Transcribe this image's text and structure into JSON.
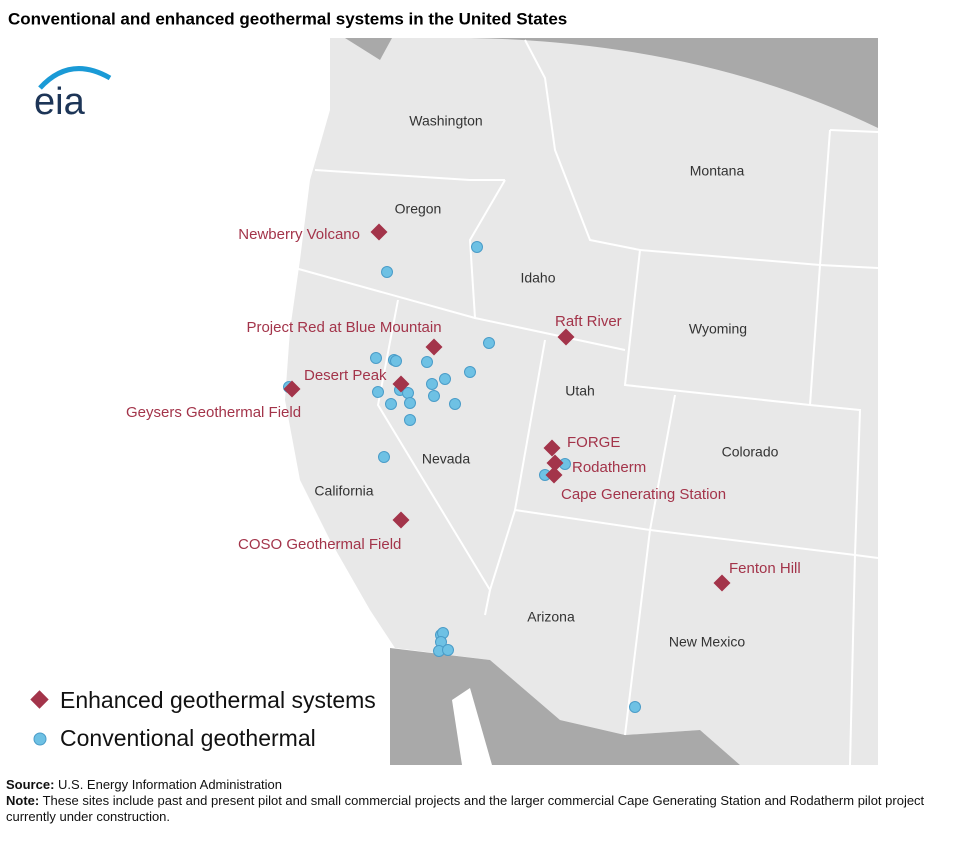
{
  "title": "Conventional and enhanced geothermal systems in the United States",
  "logo": "eia",
  "states": [
    "Washington",
    "Oregon",
    "Montana",
    "Idaho",
    "Wyoming",
    "Utah",
    "Nevada",
    "Colorado",
    "California",
    "Arizona",
    "New Mexico"
  ],
  "enhanced_sites": [
    "Newberry Volcano",
    "Project Red at Blue Mountain",
    "Raft River",
    "Desert Peak",
    "Geysers Geothermal Field",
    "FORGE",
    "Rodatherm",
    "Cape Generating Station",
    "COSO Geothermal Field",
    "Fenton Hill"
  ],
  "legend": [
    "Enhanced geothermal systems",
    "Conventional geothermal"
  ],
  "source": {
    "label": "Source:",
    "text": "U.S. Energy Information Administration"
  },
  "note": {
    "label": "Note:",
    "text": "These sites include past and present pilot and small commercial projects and the larger commercial Cape Generating Station and Rodatherm pilot project currently under construction."
  }
}
